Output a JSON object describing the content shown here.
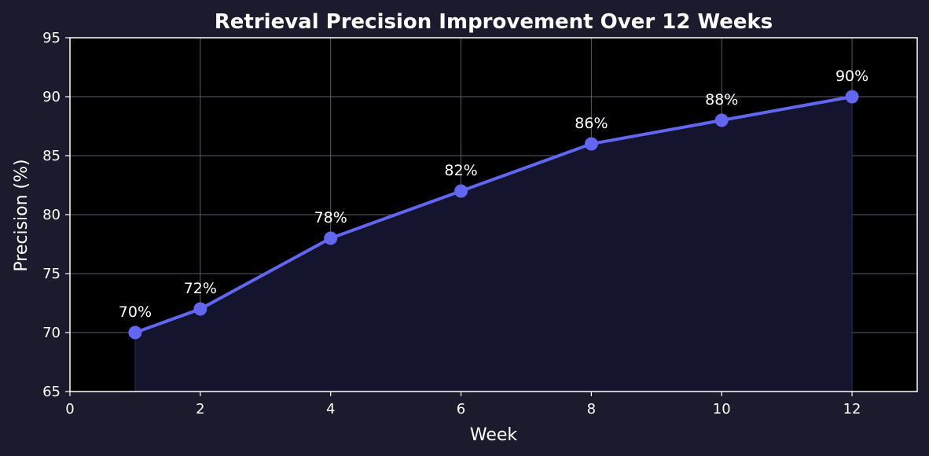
{
  "chart_data": {
    "type": "line",
    "title": "Retrieval Precision Improvement Over 12 Weeks",
    "xlabel": "Week",
    "ylabel": "Precision (%)",
    "xlim": [
      0,
      13
    ],
    "ylim": [
      65,
      95
    ],
    "x_ticks": [
      0,
      2,
      4,
      6,
      8,
      10,
      12
    ],
    "y_ticks": [
      65,
      70,
      75,
      80,
      85,
      90,
      95
    ],
    "grid": true,
    "area_fill": true,
    "series": [
      {
        "x": [
          1,
          2,
          4,
          6,
          8,
          10,
          12
        ],
        "values": [
          70,
          72,
          78,
          82,
          86,
          88,
          90
        ],
        "labels": [
          "70%",
          "72%",
          "78%",
          "82%",
          "86%",
          "88%",
          "90%"
        ]
      }
    ],
    "colors": {
      "figure_bg": "#1c1b2e",
      "plot_bg": "#000000",
      "line": "#6366f1",
      "area": "#14142f",
      "grid": "#6b6b78",
      "axis": "#ffffff",
      "text": "#ffffff"
    }
  }
}
